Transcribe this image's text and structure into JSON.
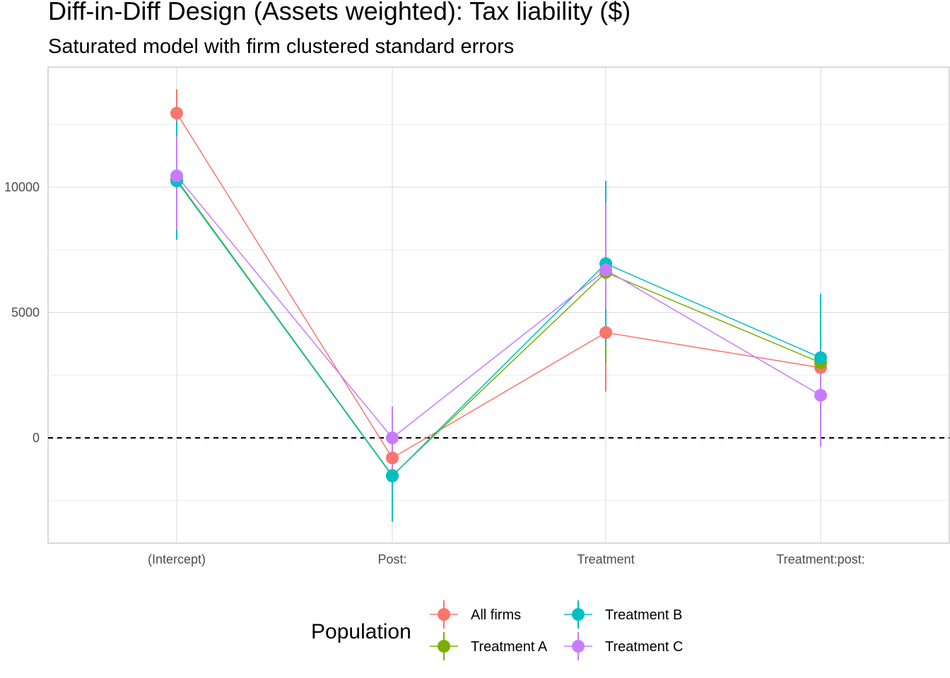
{
  "chart_data": {
    "type": "scatter",
    "title": "Diff-in-Diff Design (Assets weighted): Tax liability  ($)",
    "subtitle": "Saturated model with firm clustered standard errors",
    "xlabel": "",
    "ylabel": "",
    "categories": [
      "(Intercept)",
      "Post:",
      "Treatment",
      "Treatment:post:"
    ],
    "ylim": [
      -4200,
      14800
    ],
    "yticks": [
      0,
      5000,
      10000
    ],
    "ytick_labels": [
      "0",
      "5000",
      "10000"
    ],
    "reference_line": {
      "y": 0,
      "style": "dashed"
    },
    "grid": true,
    "legend": {
      "title": "Population",
      "position": "bottom"
    },
    "series": [
      {
        "name": "All firms",
        "color": "#F8766D",
        "values": [
          12950,
          -800,
          4200,
          2800
        ],
        "lower": [
          11950,
          -950,
          1850,
          2700
        ],
        "upper": [
          13900,
          -650,
          6550,
          2900
        ]
      },
      {
        "name": "Treatment A",
        "color": "#7CAE00",
        "values": [
          10300,
          -1500,
          6600,
          3000
        ],
        "lower": [
          8900,
          -1650,
          3000,
          2850
        ],
        "upper": [
          11500,
          -1350,
          7050,
          3150
        ]
      },
      {
        "name": "Treatment B",
        "color": "#00BFC4",
        "values": [
          10250,
          -1520,
          6950,
          3200
        ],
        "lower": [
          7900,
          -3350,
          3700,
          1050
        ],
        "upper": [
          12650,
          300,
          10250,
          5750
        ]
      },
      {
        "name": "Treatment C",
        "color": "#C77CFF",
        "values": [
          10450,
          0,
          6700,
          1700
        ],
        "lower": [
          8300,
          -1300,
          5150,
          -350
        ],
        "upper": [
          12050,
          1250,
          9400,
          3500
        ]
      }
    ]
  }
}
